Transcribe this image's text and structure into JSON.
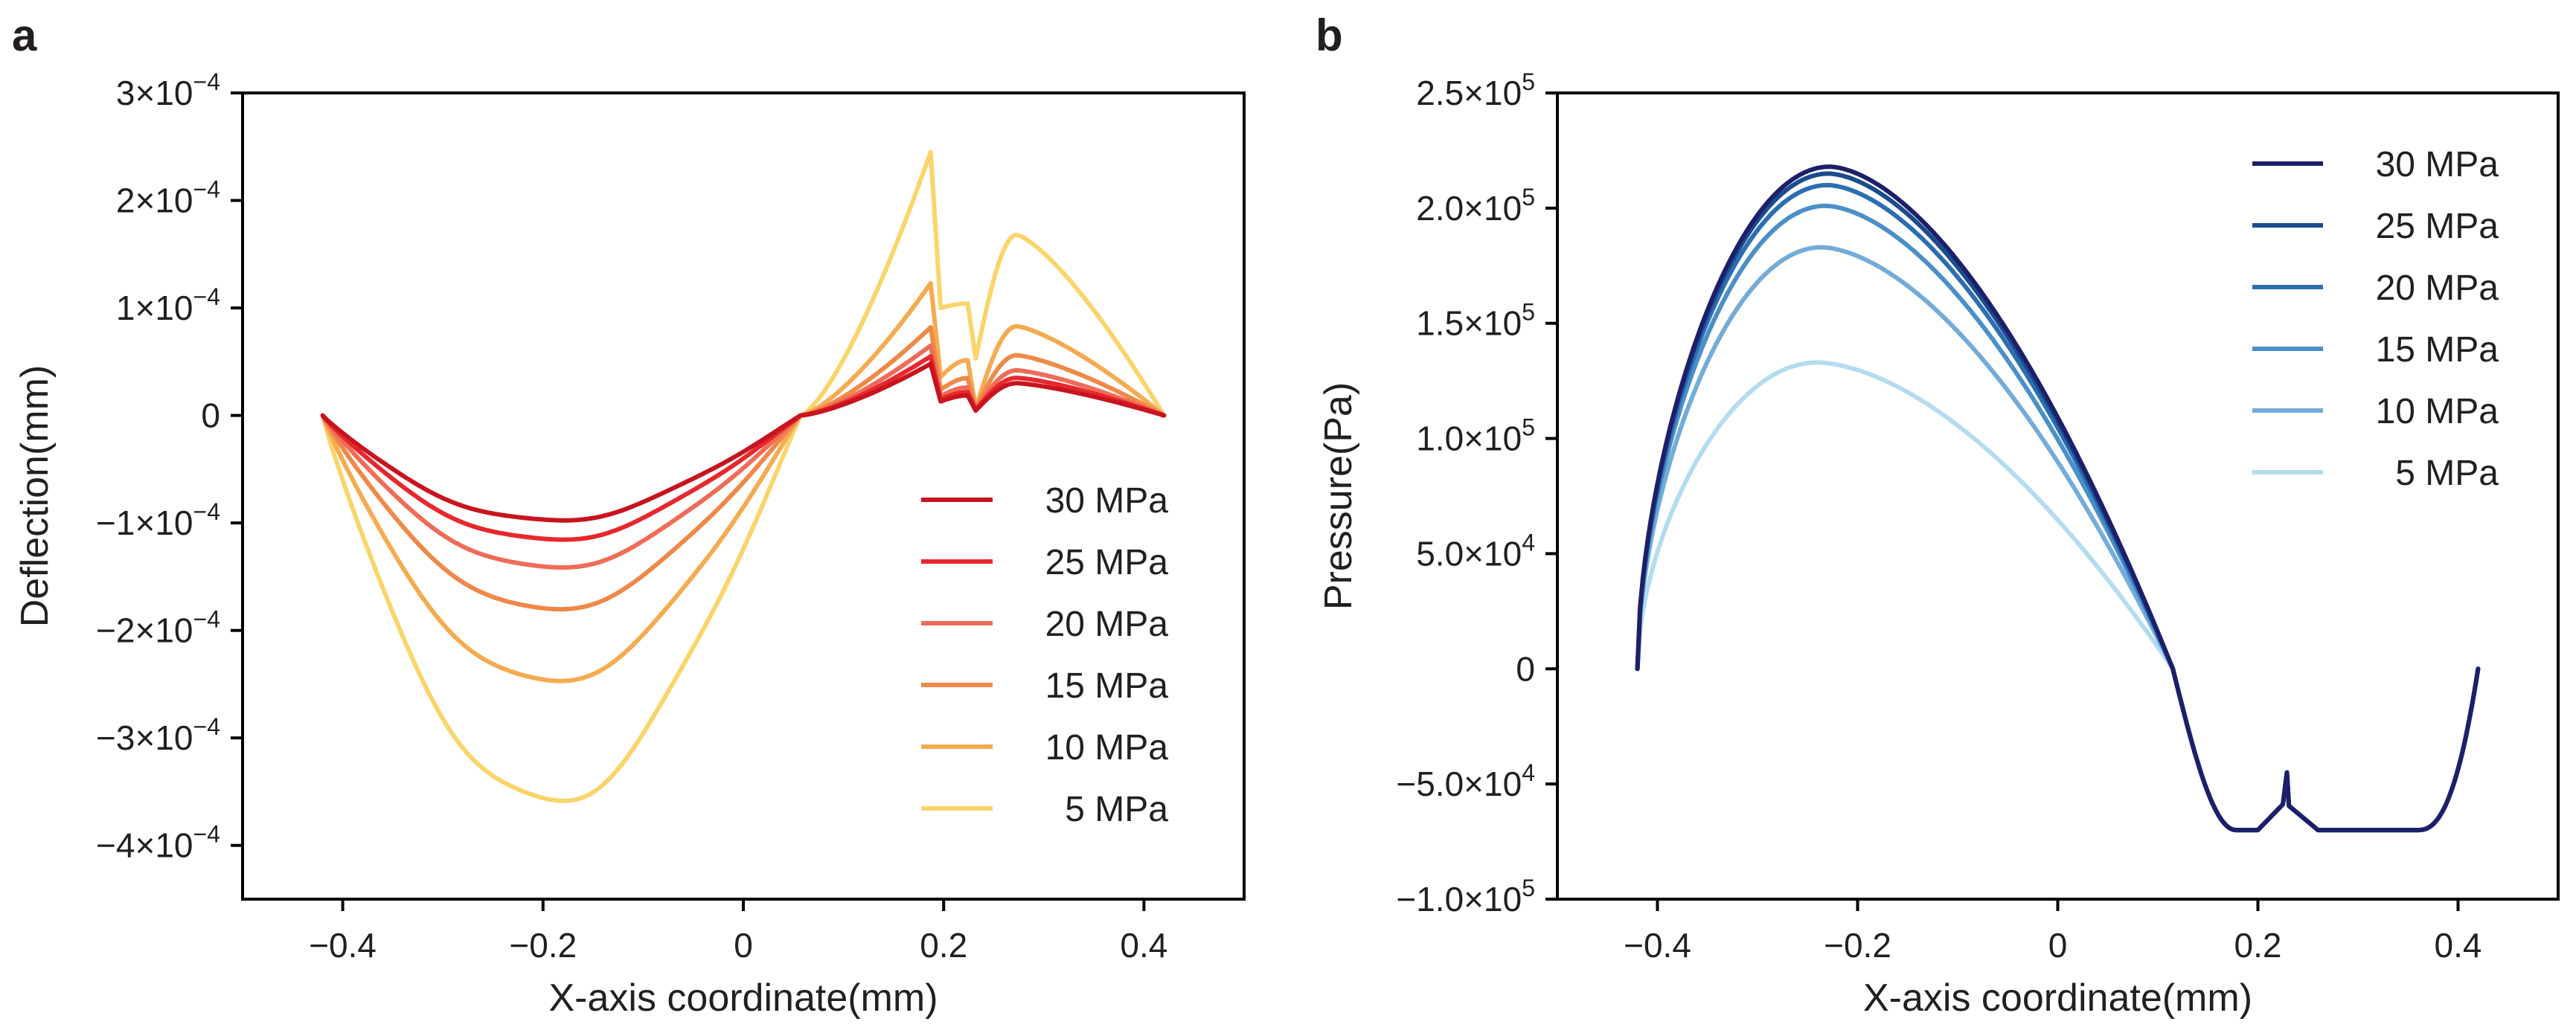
{
  "chart_data": [
    {
      "type": "line",
      "panel_label": "a",
      "xlabel": "X-axis coordinate(mm)",
      "ylabel": "Deflection(mm)",
      "xlim": [
        -0.5,
        0.5
      ],
      "ylim": [
        -0.00045,
        0.0003
      ],
      "grid": false,
      "legend_position": "lower-right",
      "x_ticks": [
        {
          "value": -0.4,
          "label": "-0.4"
        },
        {
          "value": -0.2,
          "label": "-0.2"
        },
        {
          "value": 0,
          "label": "0"
        },
        {
          "value": 0.2,
          "label": "0.2"
        },
        {
          "value": 0.4,
          "label": "0.4"
        }
      ],
      "y_ticks": [
        {
          "value": 0.0003,
          "mantissa": "3×10",
          "exponent": "-4"
        },
        {
          "value": 0.0002,
          "mantissa": "2×10",
          "exponent": "-4"
        },
        {
          "value": 0.0001,
          "mantissa": "1×10",
          "exponent": "-4"
        },
        {
          "value": 0,
          "mantissa": "0",
          "exponent": ""
        },
        {
          "value": -0.0001,
          "mantissa": "-1×10",
          "exponent": "-4"
        },
        {
          "value": -0.0002,
          "mantissa": "-2×10",
          "exponent": "-4"
        },
        {
          "value": -0.0003,
          "mantissa": "-3×10",
          "exponent": "-4"
        },
        {
          "value": -0.0004,
          "mantissa": "-4×10",
          "exponent": "-4"
        }
      ],
      "series": [
        {
          "name": "30 MPa",
          "color": "#c8141e",
          "min_deflection": -9.8e-05,
          "peak1": 4.8e-05,
          "drop1": 1.3e-05,
          "peak2": 3e-05,
          "drop2": 4.5e-06,
          "wave": 1.4e-05
        },
        {
          "name": "25 MPa",
          "color": "#e8282c",
          "min_deflection": -0.000116,
          "peak1": 5.5e-05,
          "drop1": 1.5e-05,
          "peak2": 3.5e-05,
          "drop2": 5e-06,
          "wave": 1.6e-05
        },
        {
          "name": "20 MPa",
          "color": "#ef6c58",
          "min_deflection": -0.000142,
          "peak1": 6.5e-05,
          "drop1": 1.8e-05,
          "peak2": 4.2e-05,
          "drop2": 5.5e-06,
          "wave": 1.8e-05
        },
        {
          "name": "15 MPa",
          "color": "#ef8948",
          "min_deflection": -0.000181,
          "peak1": 8.2e-05,
          "drop1": 2.4e-05,
          "peak2": 5.6e-05,
          "drop2": 6e-06,
          "wave": 2e-05
        },
        {
          "name": "10 MPa",
          "color": "#f5ab50",
          "min_deflection": -0.000248,
          "peak1": 0.000123,
          "drop1": 3.6e-05,
          "peak2": 8.3e-05,
          "drop2": 7e-06,
          "wave": 2.8e-05
        },
        {
          "name": "5 MPa",
          "color": "#fbd46a",
          "min_deflection": -0.00036,
          "peak1": 0.000245,
          "drop1": 0.0001,
          "peak2": 0.000168,
          "drop2": 5.3e-05,
          "wave": 5e-05
        }
      ]
    },
    {
      "type": "line",
      "panel_label": "b",
      "xlabel": "X-axis coordinate(mm)",
      "ylabel": "Pressure(Pa)",
      "xlim": [
        -0.5,
        0.5
      ],
      "ylim": [
        -100000,
        250000
      ],
      "grid": false,
      "legend_position": "upper-right",
      "x_ticks": [
        {
          "value": -0.4,
          "label": "-0.4"
        },
        {
          "value": -0.2,
          "label": "-0.2"
        },
        {
          "value": 0,
          "label": "0"
        },
        {
          "value": 0.2,
          "label": "0.2"
        },
        {
          "value": 0.4,
          "label": "0.4"
        }
      ],
      "y_ticks": [
        {
          "value": 250000,
          "mantissa": "2.5×10",
          "exponent": "5"
        },
        {
          "value": 200000,
          "mantissa": "2.0×10",
          "exponent": "5"
        },
        {
          "value": 150000,
          "mantissa": "1.5×10",
          "exponent": "5"
        },
        {
          "value": 100000,
          "mantissa": "1.0×10",
          "exponent": "5"
        },
        {
          "value": 50000,
          "mantissa": "5.0×10",
          "exponent": "4"
        },
        {
          "value": 0,
          "mantissa": "0",
          "exponent": ""
        },
        {
          "value": -50000,
          "mantissa": "-5.0×10",
          "exponent": "4"
        },
        {
          "value": -100000,
          "mantissa": "-1.0×10",
          "exponent": "5"
        }
      ],
      "cavitation_pressure": -70000,
      "series": [
        {
          "name": "30 MPa",
          "color": "#1d1f6a",
          "peak_x": -0.228,
          "peak_pressure": 218000
        },
        {
          "name": "25 MPa",
          "color": "#1a4c8e",
          "peak_x": -0.229,
          "peak_pressure": 215000
        },
        {
          "name": "20 MPa",
          "color": "#2b6eb2",
          "peak_x": -0.23,
          "peak_pressure": 210000
        },
        {
          "name": "15 MPa",
          "color": "#4b8fc9",
          "peak_x": -0.232,
          "peak_pressure": 201000
        },
        {
          "name": "10 MPa",
          "color": "#74acd9",
          "peak_x": -0.236,
          "peak_pressure": 183000
        },
        {
          "name": "5 MPa",
          "color": "#b3dcf0",
          "peak_x": -0.24,
          "peak_pressure": 133000
        }
      ]
    }
  ]
}
